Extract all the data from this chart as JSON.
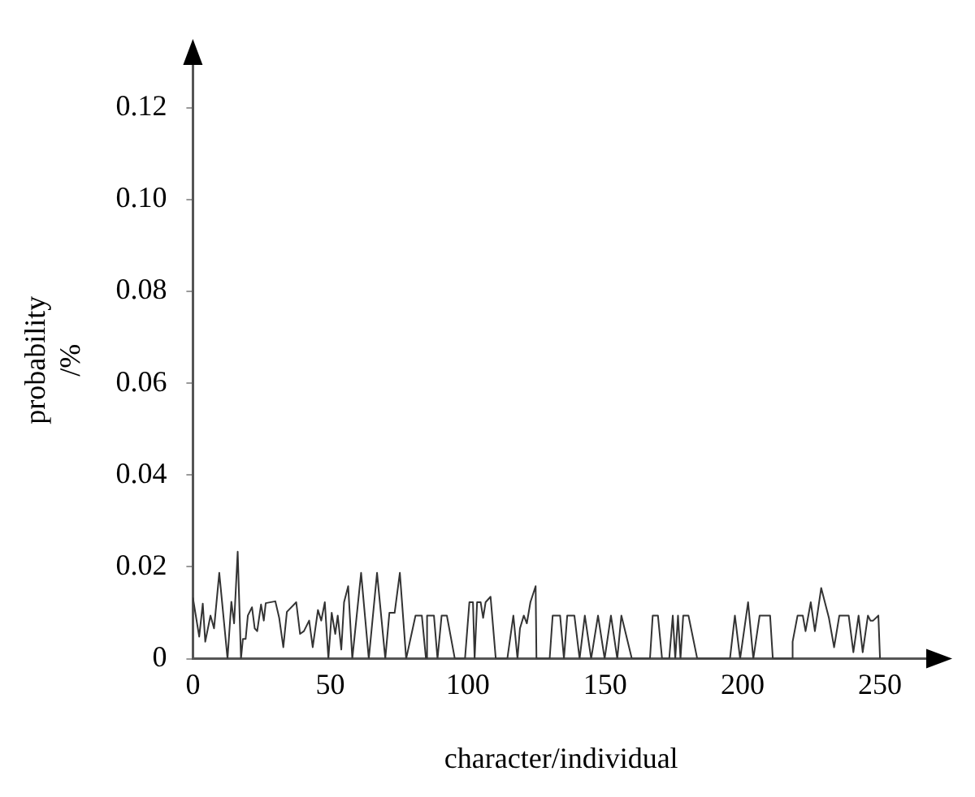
{
  "chart_data": {
    "type": "line",
    "xlabel": "character/individual",
    "ylabel": "probability /%",
    "x": [
      0,
      2.3,
      3.6,
      4.5,
      6.4,
      7.7,
      9.6,
      12.6,
      14,
      15,
      16.3,
      17.5,
      18.2,
      19.2,
      20,
      21.5,
      22.5,
      23.4,
      24.8,
      25.8,
      26.5,
      30,
      31.4,
      32.9,
      34.2,
      37.6,
      39,
      40.4,
      42.3,
      43.6,
      45.5,
      46.7,
      48,
      49.3,
      50.5,
      51.8,
      52.7,
      54,
      55,
      56.5,
      58,
      61.2,
      64,
      67,
      70,
      71.5,
      73.4,
      75.3,
      77.6,
      81,
      83.3,
      84.8,
      85.2,
      87.7,
      89,
      90.5,
      92.4,
      95.3,
      99,
      100.6,
      101.9,
      102.5,
      103.4,
      104.7,
      105.6,
      106.5,
      108.3,
      110.2,
      114.4,
      116.6,
      118.1,
      119,
      120.4,
      121.5,
      122.8,
      124.7,
      125,
      129.8,
      130.9,
      133.6,
      135,
      136.2,
      138.8,
      140.7,
      142.6,
      144.9,
      147.4,
      149.8,
      152.1,
      154.4,
      155.9,
      159.7,
      166.3,
      167.3,
      169.2,
      170.7,
      173.3,
      174.6,
      175.5,
      176.5,
      177.4,
      178.4,
      180.3,
      183.5,
      195.4,
      197.2,
      199.1,
      202,
      203.9,
      206.2,
      210,
      211,
      218.1,
      218.2,
      220,
      221.9,
      222.9,
      224.8,
      226.3,
      228.6,
      231.4,
      233.3,
      235.2,
      238.6,
      240.3,
      242.2,
      243.7,
      245.6,
      246.5,
      247.5,
      249.4,
      250
    ],
    "values": [
      0.0133,
      0.0048,
      0.012,
      0.0037,
      0.0094,
      0.0066,
      0.0187,
      0,
      0.0124,
      0.0077,
      0.0233,
      0,
      0.0043,
      0.0043,
      0.0094,
      0.0112,
      0.0066,
      0.006,
      0.0118,
      0.0083,
      0.0121,
      0.0125,
      0.0089,
      0.0025,
      0.0102,
      0.0123,
      0.0054,
      0.006,
      0.0083,
      0.0025,
      0.0106,
      0.0083,
      0.0123,
      0,
      0.01,
      0.0054,
      0.0094,
      0.002,
      0.0123,
      0.0158,
      0,
      0.0187,
      0,
      0.0187,
      0,
      0.01,
      0.01,
      0.0187,
      0,
      0.0094,
      0.0094,
      0,
      0.0094,
      0.0094,
      0,
      0.0094,
      0.0094,
      0,
      0,
      0.0123,
      0.0123,
      0,
      0.0123,
      0.0123,
      0.0089,
      0.0123,
      0.0135,
      0,
      0,
      0.0094,
      0,
      0.0066,
      0.0094,
      0.0077,
      0.0123,
      0.0158,
      0,
      0,
      0.0094,
      0.0094,
      0,
      0.0094,
      0.0094,
      0,
      0.0094,
      0,
      0.0094,
      0,
      0.0094,
      0,
      0.0094,
      0,
      0,
      0.0094,
      0.0094,
      0,
      0,
      0.0094,
      0,
      0.0094,
      0,
      0.0094,
      0.0094,
      0,
      0,
      0.0094,
      0,
      0.0123,
      0,
      0.0094,
      0.0094,
      0,
      0,
      0.0037,
      0.0094,
      0.0094,
      0.006,
      0.0123,
      0.006,
      0.0154,
      0.0089,
      0.0025,
      0.0094,
      0.0094,
      0.0014,
      0.0094,
      0.0014,
      0.0094,
      0.0083,
      0.0083,
      0.0094,
      0
    ],
    "color": "#333333",
    "xlim": [
      0,
      268
    ],
    "xticks": [
      0,
      50,
      100,
      150,
      200,
      250
    ],
    "ylim": [
      0,
      0.13
    ],
    "yticks": [
      0,
      0.02,
      0.04,
      0.06,
      0.08,
      {
        "value": 0.1,
        "label": "0.10"
      },
      0.12
    ],
    "grid": false,
    "marker": "none",
    "line_style": "solid"
  }
}
